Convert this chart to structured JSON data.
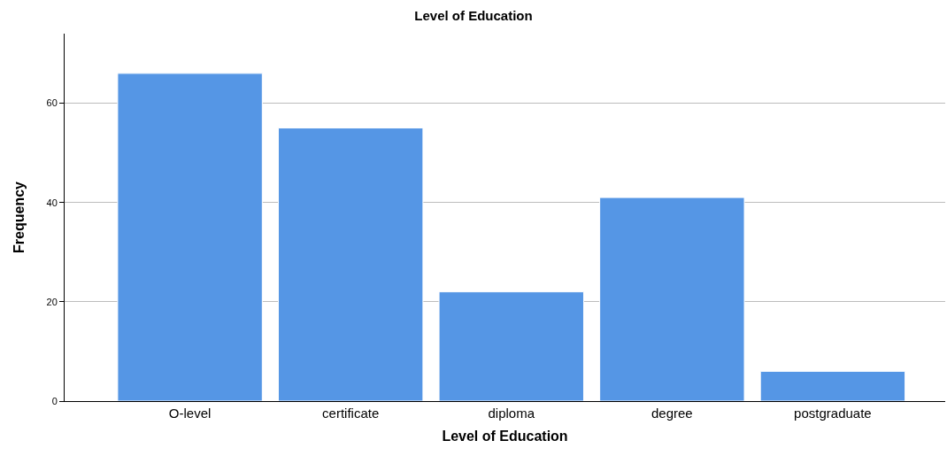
{
  "chart_data": {
    "type": "bar",
    "title": "Level of Education",
    "xlabel": "Level of Education",
    "ylabel": "Frequency",
    "categories": [
      "O-level",
      "certificate",
      "diploma",
      "degree",
      "postgraduate"
    ],
    "values": [
      66,
      55,
      22,
      41,
      6
    ],
    "color": "#5596e5",
    "ylim": [
      0,
      74
    ],
    "yticks": [
      0,
      20,
      40,
      60
    ],
    "grid": "y",
    "legend": false
  }
}
